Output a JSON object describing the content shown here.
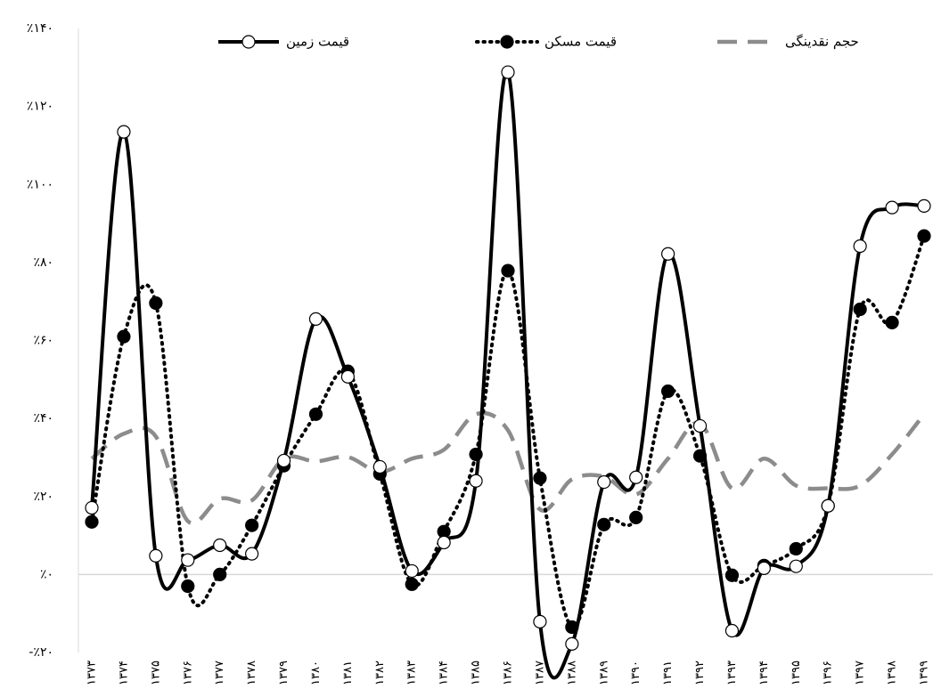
{
  "chart_data": {
    "type": "line",
    "categories": [
      "۱۳۷۳",
      "۱۳۷۴",
      "۱۳۷۵",
      "۱۳۷۶",
      "۱۳۷۷",
      "۱۳۷۸",
      "۱۳۷۹",
      "۱۳۸۰",
      "۱۳۸۱",
      "۱۳۸۲",
      "۱۳۸۳",
      "۱۳۸۴",
      "۱۳۸۵",
      "۱۳۸۶",
      "۱۳۸۷",
      "۱۳۸۸",
      "۱۳۸۹",
      "۱۳۹۰",
      "۱۳۹۱",
      "۱۳۹۲",
      "۱۳۹۳",
      "۱۳۹۴",
      "۱۳۹۵",
      "۱۳۹۶",
      "۱۳۹۷",
      "۱۳۹۸",
      "۱۳۹۹"
    ],
    "series": [
      {
        "name": "قیمت زمین",
        "color": "#000000",
        "style": "solid",
        "marker": "open",
        "values": [
          17.1,
          113.5,
          4.8,
          3.7,
          7.5,
          5.3,
          29.2,
          65.5,
          50.7,
          27.6,
          0.9,
          8.2,
          24.0,
          128.8,
          -12.1,
          -17.8,
          23.7,
          24.9,
          82.2,
          38.1,
          -14.4,
          1.6,
          2.1,
          17.6,
          84.2,
          94.1,
          94.5
        ]
      },
      {
        "name": "قیمت مسکن",
        "color": "#000000",
        "style": "dotted",
        "marker": "filled",
        "values": [
          13.5,
          61.0,
          69.6,
          -3.0,
          0,
          12.6,
          27.9,
          41.1,
          52.1,
          25.8,
          -2.5,
          11.0,
          30.8,
          77.9,
          24.7,
          -13.5,
          12.8,
          14.6,
          47.0,
          30.4,
          -0.2,
          2.3,
          6.6,
          17.6,
          68.0,
          64.6,
          86.8
        ]
      },
      {
        "name": "حجم نقدینگی",
        "color": "#8c8c8c",
        "style": "dashed",
        "marker": "none",
        "values": [
          29.7,
          36.1,
          35.4,
          13.7,
          19.4,
          19.0,
          29.7,
          29.0,
          30.1,
          26.3,
          29.7,
          32.0,
          41.1,
          37.0,
          16.7,
          24.4,
          25.1,
          20.5,
          29.7,
          38.8,
          22.1,
          29.7,
          22.8,
          22.1,
          22.8,
          30.8,
          41.1
        ]
      }
    ],
    "ylim": [
      -20,
      140
    ],
    "yticks": [
      {
        "value": -20,
        "label": "-٪۲۰"
      },
      {
        "value": 0,
        "label": "٪۰"
      },
      {
        "value": 20,
        "label": "٪۲۰"
      },
      {
        "value": 40,
        "label": "٪۴۰"
      },
      {
        "value": 60,
        "label": "٪۶۰"
      },
      {
        "value": 80,
        "label": "٪۸۰"
      },
      {
        "value": 100,
        "label": "٪۱۰۰"
      },
      {
        "value": 120,
        "label": "٪۱۲۰"
      },
      {
        "value": 140,
        "label": "٪۱۴۰"
      }
    ],
    "grid": false
  }
}
